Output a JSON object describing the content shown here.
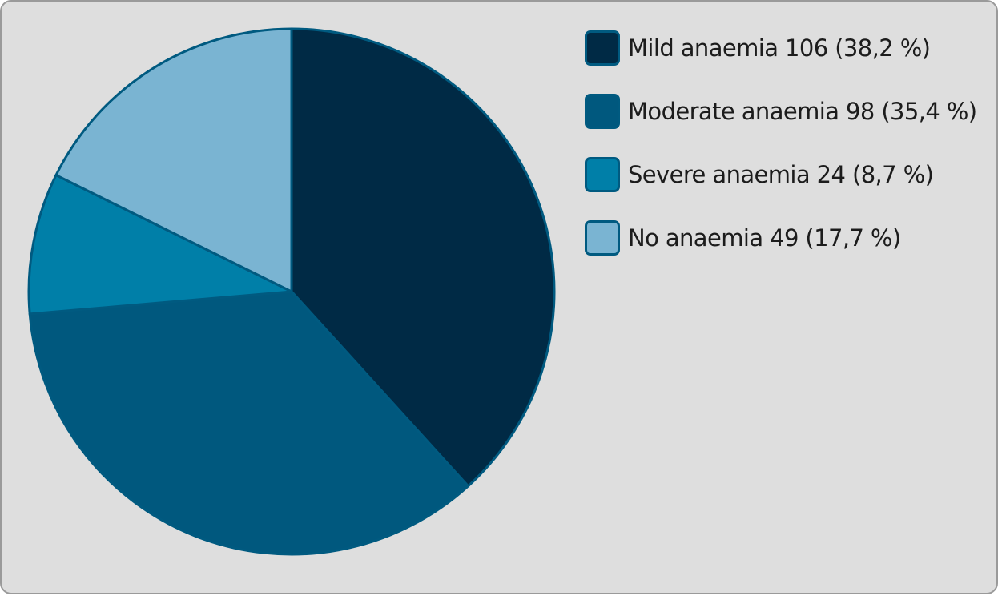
{
  "chart_data": {
    "type": "pie",
    "title": "",
    "legend_position": "right",
    "slices": [
      {
        "label": "Mild anaemia 106 (38,2 %)",
        "value": 106,
        "percent": 38.2,
        "color": "#002a45"
      },
      {
        "label": "Moderate anaemia 98 (35,4 %)",
        "value": 98,
        "percent": 35.4,
        "color": "#00587e"
      },
      {
        "label": "Severe anaemia 24 (8,7 %)",
        "value": 24,
        "percent": 8.7,
        "color": "#007fa8"
      },
      {
        "label": "No anaemia 49 (17,7 %)",
        "value": 49,
        "percent": 17.7,
        "color": "#7ab4d2"
      }
    ],
    "slice_border_color": "#005a80",
    "background_color": "#dedede"
  }
}
